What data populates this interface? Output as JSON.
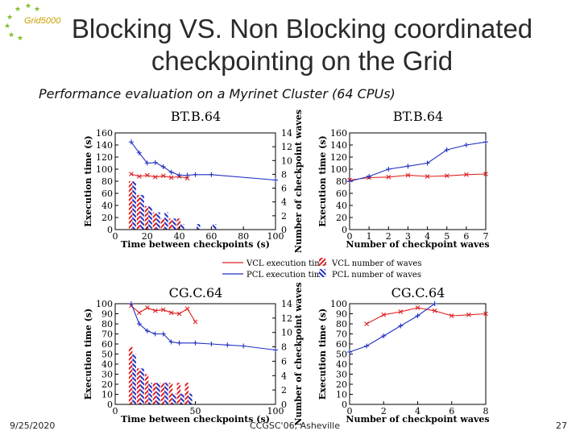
{
  "slide": {
    "title_line1": "Blocking VS. Non Blocking coordinated",
    "title_line2": "checkpointing on the Grid",
    "subtitle": "Performance evaluation on a Myrinet Cluster (64 CPUs)",
    "logo_text": "Grid5000",
    "footer_date": "9/25/2020",
    "footer_event": "CCGSC'06, Asheville",
    "footer_page": "27"
  },
  "legend": {
    "vcl_time": "VCL execution time",
    "pcl_time": "PCL execution time",
    "vcl_waves": "VCL number of waves",
    "pcl_waves": "PCL number of waves"
  },
  "colors": {
    "vcl": "#e02020",
    "pcl": "#2030c0",
    "axis": "#000000"
  },
  "chart_data": [
    {
      "id": "bt-time-between",
      "type": "line",
      "title": "BT.B.64",
      "xlabel": "Time between checkpoints (s)",
      "ylabel": "Execution time (s)",
      "y2label": "Number of checkpoint waves",
      "xlim": [
        0,
        100
      ],
      "ylim": [
        0,
        160
      ],
      "y2lim": [
        0,
        14
      ],
      "xticks": [
        0,
        20,
        40,
        60,
        80,
        100
      ],
      "yticks": [
        0,
        20,
        40,
        60,
        80,
        100,
        120,
        140,
        160
      ],
      "y2ticks": [
        0,
        2,
        4,
        6,
        8,
        10,
        12,
        14
      ],
      "series": [
        {
          "name": "VCL execution time",
          "x": [
            10,
            15,
            20,
            25,
            30,
            35,
            40,
            45
          ],
          "values": [
            92,
            88,
            90,
            87,
            89,
            86,
            88,
            85
          ]
        },
        {
          "name": "PCL execution time",
          "x": [
            10,
            15,
            20,
            25,
            30,
            35,
            40,
            45,
            50,
            60,
            100
          ],
          "values": [
            145,
            127,
            110,
            111,
            104,
            95,
            90,
            90,
            91,
            91,
            82
          ]
        }
      ],
      "bars": [
        {
          "name": "VCL number of waves",
          "x": [
            10,
            15,
            20,
            25,
            30,
            35,
            40
          ],
          "values": [
            7,
            5,
            3.4,
            2.5,
            1.6,
            1.6,
            1.6
          ]
        },
        {
          "name": "PCL number of waves",
          "x": [
            10,
            15,
            20,
            25,
            30,
            35,
            40,
            50,
            60
          ],
          "values": [
            7,
            5,
            3.4,
            2.5,
            2.5,
            1.6,
            0.8,
            0.8,
            0.8
          ]
        }
      ]
    },
    {
      "id": "bt-waves",
      "type": "line",
      "title": "BT.B.64",
      "xlabel": "Number of checkpoint waves",
      "ylabel": "Execution time (s)",
      "xlim": [
        0,
        7
      ],
      "ylim": [
        0,
        160
      ],
      "xticks": [
        0,
        1,
        2,
        3,
        4,
        5,
        6,
        7
      ],
      "yticks": [
        0,
        20,
        40,
        60,
        80,
        100,
        120,
        140,
        160
      ],
      "series": [
        {
          "name": "VCL execution time",
          "x": [
            0,
            1,
            2,
            3,
            4,
            5,
            6,
            7
          ],
          "values": [
            82,
            86,
            87,
            90,
            88,
            89,
            91,
            92
          ]
        },
        {
          "name": "PCL execution time",
          "x": [
            0,
            1,
            2,
            3,
            4,
            5,
            6,
            7
          ],
          "values": [
            80,
            88,
            100,
            105,
            110,
            132,
            140,
            145
          ]
        }
      ]
    },
    {
      "id": "cg-time-between",
      "type": "line",
      "title": "CG.C.64",
      "xlabel": "Time between checkpoints (s)",
      "ylabel": "Execution time (s)",
      "y2label": "Number of checkpoint waves",
      "xlim": [
        0,
        100
      ],
      "ylim": [
        0,
        100
      ],
      "y2lim": [
        0,
        14
      ],
      "xticks": [
        0,
        50,
        100
      ],
      "yticks": [
        0,
        10,
        20,
        30,
        40,
        50,
        60,
        70,
        80,
        90,
        100
      ],
      "y2ticks": [
        0,
        2,
        4,
        6,
        8,
        10,
        12,
        14
      ],
      "series": [
        {
          "name": "VCL execution time",
          "x": [
            10,
            15,
            20,
            25,
            30,
            35,
            40,
            45,
            50
          ],
          "values": [
            98,
            91,
            96,
            93,
            94,
            91,
            90,
            95,
            82
          ]
        },
        {
          "name": "PCL execution time",
          "x": [
            10,
            15,
            20,
            25,
            30,
            35,
            40,
            50,
            60,
            70,
            80,
            100
          ],
          "values": [
            100,
            80,
            73,
            70,
            70,
            62,
            61,
            61,
            60,
            59,
            58,
            54
          ]
        }
      ],
      "bars": [
        {
          "name": "VCL number of waves",
          "x": [
            10,
            15,
            20,
            25,
            30,
            35,
            40,
            45
          ],
          "values": [
            8,
            5,
            4.2,
            3,
            3,
            3,
            3,
            3
          ]
        },
        {
          "name": "PCL number of waves",
          "x": [
            10,
            15,
            20,
            25,
            30,
            35,
            40,
            45
          ],
          "values": [
            7,
            5,
            3,
            3,
            3,
            1.5,
            1.5,
            1.5
          ]
        }
      ]
    },
    {
      "id": "cg-waves",
      "type": "line",
      "title": "CG.C.64",
      "xlabel": "Number of checkpoint waves",
      "ylabel": "Execution time (s)",
      "xlim": [
        0,
        8
      ],
      "ylim": [
        0,
        100
      ],
      "xticks": [
        0,
        2,
        4,
        6,
        8
      ],
      "yticks": [
        0,
        10,
        20,
        30,
        40,
        50,
        60,
        70,
        80,
        90,
        100
      ],
      "series": [
        {
          "name": "VCL execution time",
          "x": [
            1,
            2,
            3,
            4,
            5,
            6,
            7,
            8
          ],
          "values": [
            80,
            89,
            92,
            96,
            93,
            88,
            89,
            90
          ]
        },
        {
          "name": "PCL execution time",
          "x": [
            0,
            1,
            2,
            3,
            4,
            5
          ],
          "values": [
            52,
            58,
            68,
            78,
            88,
            100
          ]
        }
      ]
    }
  ]
}
